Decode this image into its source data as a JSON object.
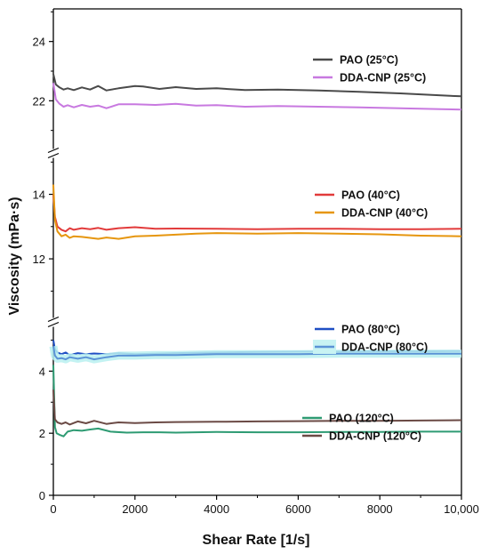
{
  "chart_data": {
    "type": "line",
    "xlabel": "Shear Rate [1/s]",
    "ylabel": "Viscosity (mPa·s)",
    "xlim": [
      0,
      10000
    ],
    "x_ticks": [
      "0",
      "2000",
      "4000",
      "6000",
      "8000",
      "10,000"
    ],
    "x_tick_values": [
      0,
      2000,
      4000,
      6000,
      8000,
      10000
    ],
    "grid": false,
    "y_axis_break": "broken axis with three segments",
    "panels": [
      {
        "ylim": [
          20.3,
          25.1
        ],
        "y_ticks": [
          22,
          24
        ],
        "legend_position": "top-right",
        "series": [
          {
            "name": "PAO (25°C)",
            "color": "#4a4a4a",
            "x": [
              0,
              60,
              150,
              250,
              350,
              500,
              700,
              900,
              1100,
              1300,
              1600,
              2000,
              2200,
              2600,
              3000,
              3500,
              4000,
              4700,
              5500,
              6500,
              7500,
              8500,
              9500,
              10000
            ],
            "y": [
              22.9,
              22.55,
              22.45,
              22.38,
              22.42,
              22.36,
              22.45,
              22.38,
              22.5,
              22.35,
              22.42,
              22.5,
              22.48,
              22.4,
              22.46,
              22.4,
              22.42,
              22.36,
              22.38,
              22.35,
              22.3,
              22.25,
              22.18,
              22.15
            ]
          },
          {
            "name": "DDA-CNP (25°C)",
            "color": "#c879e0",
            "x": [
              0,
              60,
              150,
              250,
              350,
              500,
              700,
              900,
              1100,
              1300,
              1600,
              2000,
              2500,
              3000,
              3500,
              4000,
              4700,
              5500,
              6500,
              7500,
              8500,
              9500,
              10000
            ],
            "y": [
              22.6,
              22.05,
              21.9,
              21.8,
              21.85,
              21.78,
              21.86,
              21.8,
              21.84,
              21.75,
              21.88,
              21.88,
              21.86,
              21.9,
              21.84,
              21.85,
              21.8,
              21.82,
              21.8,
              21.78,
              21.75,
              21.72,
              21.7
            ]
          }
        ]
      },
      {
        "ylim": [
          10.1,
          15.2
        ],
        "y_ticks": [
          12,
          14
        ],
        "legend_position": "top-right",
        "series": [
          {
            "name": "PAO (40°C)",
            "color": "#e23b3b",
            "x": [
              0,
              40,
              100,
              200,
              300,
              400,
              500,
              700,
              900,
              1100,
              1300,
              1600,
              2000,
              2500,
              3000,
              4000,
              5000,
              6000,
              7000,
              8000,
              9000,
              10000
            ],
            "y": [
              14.0,
              13.3,
              13.0,
              12.9,
              12.85,
              12.95,
              12.9,
              12.95,
              12.92,
              12.96,
              12.9,
              12.95,
              12.98,
              12.93,
              12.94,
              12.93,
              12.92,
              12.93,
              12.93,
              12.92,
              12.92,
              12.93
            ]
          },
          {
            "name": "DDA-CNP (40°C)",
            "color": "#e6960f",
            "x": [
              0,
              40,
              100,
              200,
              300,
              400,
              500,
              700,
              900,
              1100,
              1300,
              1600,
              2000,
              2500,
              3000,
              3500,
              4000,
              5000,
              6000,
              7000,
              8000,
              9000,
              10000
            ],
            "y": [
              14.3,
              13.2,
              12.85,
              12.7,
              12.75,
              12.65,
              12.7,
              12.68,
              12.65,
              12.62,
              12.66,
              12.62,
              12.7,
              12.72,
              12.75,
              12.78,
              12.8,
              12.78,
              12.8,
              12.78,
              12.76,
              12.72,
              12.7
            ]
          }
        ]
      },
      {
        "ylim": [
          0,
          5.5
        ],
        "y_ticks": [
          0,
          2,
          4
        ],
        "legend_position": "right",
        "series": [
          {
            "name": "PAO (80°C)",
            "color": "#1f4fc4",
            "x": [
              0,
              40,
              100,
              200,
              300,
              400,
              600,
              800,
              1000,
              1300,
              1600,
              2000,
              2500,
              3000,
              4000,
              5000,
              6000,
              7000,
              8000,
              9000,
              10000
            ],
            "y": [
              5.0,
              4.7,
              4.6,
              4.55,
              4.6,
              4.52,
              4.58,
              4.55,
              4.57,
              4.55,
              4.58,
              4.55,
              4.56,
              4.58,
              4.6,
              4.62,
              4.63,
              4.63,
              4.64,
              4.64,
              4.65
            ]
          },
          {
            "name": "DDA-CNP (80°C)",
            "color": "#5b93d6",
            "x": [
              0,
              40,
              100,
              200,
              300,
              400,
              600,
              800,
              1000,
              1300,
              1600,
              2000,
              2500,
              3000,
              4000,
              5000,
              6000,
              7000,
              8000,
              9000,
              10000
            ],
            "y": [
              4.8,
              4.5,
              4.4,
              4.42,
              4.38,
              4.45,
              4.4,
              4.45,
              4.38,
              4.45,
              4.5,
              4.5,
              4.52,
              4.52,
              4.55,
              4.55,
              4.55,
              4.56,
              4.56,
              4.56,
              4.56
            ]
          },
          {
            "name": "PAO (120°C)",
            "color": "#2e9b73",
            "x": [
              0,
              40,
              80,
              150,
              250,
              350,
              500,
              700,
              900,
              1100,
              1400,
              1800,
              2200,
              2600,
              3000,
              4000,
              5000,
              6000,
              7000,
              8000,
              9000,
              10000
            ],
            "y": [
              4.2,
              2.2,
              2.0,
              1.95,
              1.9,
              2.05,
              2.1,
              2.08,
              2.12,
              2.15,
              2.05,
              2.02,
              2.03,
              2.03,
              2.02,
              2.04,
              2.03,
              2.03,
              2.04,
              2.04,
              2.05,
              2.05
            ]
          },
          {
            "name": "DDA-CNP (120°C)",
            "color": "#6b4a45",
            "x": [
              0,
              40,
              100,
              200,
              300,
              400,
              600,
              800,
              1000,
              1300,
              1600,
              2000,
              2500,
              3000,
              4000,
              5000,
              6000,
              7000,
              8000,
              9000,
              10000
            ],
            "y": [
              3.4,
              2.45,
              2.35,
              2.3,
              2.35,
              2.28,
              2.38,
              2.32,
              2.4,
              2.3,
              2.35,
              2.33,
              2.35,
              2.36,
              2.37,
              2.38,
              2.39,
              2.4,
              2.4,
              2.41,
              2.42
            ]
          }
        ]
      }
    ]
  }
}
